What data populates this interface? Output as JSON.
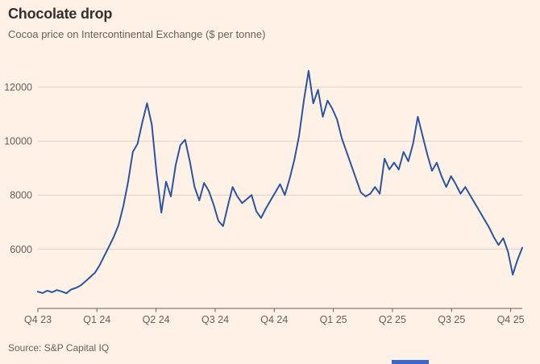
{
  "header": {
    "title": "Chocolate drop",
    "subtitle": "Cocoa price on Intercontinental Exchange ($ per tonne)"
  },
  "source": {
    "label": "Source: S&P Capital IQ"
  },
  "colors": {
    "background": "#FFF1E5",
    "line": "#2A54A4",
    "grid": "#E0D2C1",
    "axis": "#66605C",
    "title_text": "#33302E",
    "secondary_text": "#66605C",
    "cropped_bar": "#3A66D0"
  },
  "chart_data": {
    "type": "line",
    "title": "Chocolate drop",
    "subtitle": "Cocoa price on Intercontinental Exchange ($ per tonne)",
    "series_name": "Cocoa price (ICE)",
    "unit": "$ per tonne",
    "grid": "horizontal",
    "legend": "none",
    "ylim": [
      3800,
      12750
    ],
    "yticks": [
      6000,
      8000,
      10000,
      12000
    ],
    "xticks": [
      {
        "label": "Q4 23",
        "pos": 0.0
      },
      {
        "label": "Q1 24",
        "pos": 0.122
      },
      {
        "label": "Q2 24",
        "pos": 0.244
      },
      {
        "label": "Q3 24",
        "pos": 0.366
      },
      {
        "label": "Q4 24",
        "pos": 0.488
      },
      {
        "label": "Q1 25",
        "pos": 0.61
      },
      {
        "label": "Q2 25",
        "pos": 0.732
      },
      {
        "label": "Q3 25",
        "pos": 0.854
      },
      {
        "label": "Q4 25",
        "pos": 0.976
      }
    ],
    "x": [
      "2023-11-01",
      "2023-11-08",
      "2023-11-15",
      "2023-11-22",
      "2023-11-29",
      "2023-12-06",
      "2023-12-13",
      "2023-12-20",
      "2023-12-27",
      "2024-01-03",
      "2024-01-10",
      "2024-01-17",
      "2024-01-24",
      "2024-02-01",
      "2024-02-08",
      "2024-02-15",
      "2024-02-22",
      "2024-03-01",
      "2024-03-08",
      "2024-03-15",
      "2024-03-22",
      "2024-04-01",
      "2024-04-08",
      "2024-04-17",
      "2024-04-24",
      "2024-05-01",
      "2024-05-08",
      "2024-05-15",
      "2024-05-22",
      "2024-05-29",
      "2024-06-05",
      "2024-06-12",
      "2024-06-19",
      "2024-06-26",
      "2024-07-03",
      "2024-07-10",
      "2024-07-17",
      "2024-07-24",
      "2024-08-01",
      "2024-08-08",
      "2024-08-15",
      "2024-08-22",
      "2024-09-01",
      "2024-09-08",
      "2024-09-15",
      "2024-09-22",
      "2024-10-01",
      "2024-10-08",
      "2024-10-15",
      "2024-10-22",
      "2024-11-01",
      "2024-11-08",
      "2024-11-15",
      "2024-11-22",
      "2024-12-01",
      "2024-12-08",
      "2024-12-15",
      "2024-12-18",
      "2024-12-27",
      "2025-01-03",
      "2025-01-10",
      "2025-01-17",
      "2025-01-24",
      "2025-02-01",
      "2025-02-08",
      "2025-02-15",
      "2025-02-22",
      "2025-03-01",
      "2025-03-08",
      "2025-03-15",
      "2025-03-22",
      "2025-04-01",
      "2025-04-08",
      "2025-04-15",
      "2025-04-22",
      "2025-05-01",
      "2025-05-08",
      "2025-05-15",
      "2025-05-22",
      "2025-06-01",
      "2025-06-08",
      "2025-06-15",
      "2025-06-22",
      "2025-07-01",
      "2025-07-08",
      "2025-07-15",
      "2025-07-22",
      "2025-08-01",
      "2025-08-08",
      "2025-08-15",
      "2025-08-22",
      "2025-09-01",
      "2025-09-08",
      "2025-09-15",
      "2025-09-22",
      "2025-10-01",
      "2025-10-08",
      "2025-10-15",
      "2025-10-22",
      "2025-10-29",
      "2025-11-05",
      "2025-11-12",
      "2025-11-18"
    ],
    "values": [
      4420,
      4370,
      4460,
      4400,
      4480,
      4430,
      4360,
      4500,
      4560,
      4650,
      4800,
      4960,
      5120,
      5400,
      5750,
      6100,
      6460,
      6900,
      7600,
      8500,
      9600,
      9900,
      10700,
      11400,
      10600,
      8800,
      7350,
      8500,
      7950,
      9100,
      9850,
      10050,
      9250,
      8300,
      7800,
      8450,
      8150,
      7650,
      7050,
      6850,
      7600,
      8300,
      7950,
      7700,
      7850,
      8000,
      7400,
      7150,
      7500,
      7800,
      8100,
      8400,
      8000,
      8600,
      9300,
      10200,
      11500,
      12600,
      11400,
      11900,
      10900,
      11500,
      11200,
      10800,
      10100,
      9600,
      9100,
      8600,
      8100,
      7950,
      8050,
      8300,
      8050,
      9350,
      8950,
      9200,
      8950,
      9600,
      9250,
      9900,
      10900,
      10200,
      9500,
      8900,
      9200,
      8700,
      8300,
      8700,
      8400,
      8050,
      8300,
      8000,
      7700,
      7400,
      7100,
      6800,
      6450,
      6150,
      6400,
      5900,
      5050,
      5600,
      6050
    ]
  }
}
